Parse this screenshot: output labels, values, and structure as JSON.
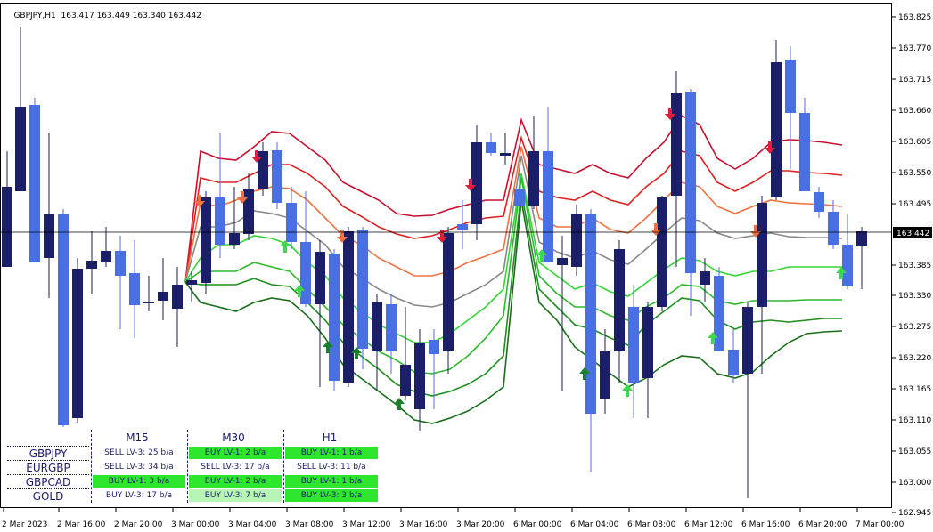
{
  "header": {
    "symbol_tf": "GBPJPY,H1",
    "ohlc": "163.417 163.449 163.340 163.442"
  },
  "current_price": "163.442",
  "y_labels": [
    "163.825",
    "163.770",
    "163.715",
    "163.660",
    "163.605",
    "163.550",
    "163.495",
    "163.385",
    "163.330",
    "163.275",
    "163.220",
    "163.165",
    "163.110",
    "163.055",
    "163.000",
    "162.945"
  ],
  "x_labels": [
    "2 Mar 2023",
    "2 Mar 16:00",
    "2 Mar 20:00",
    "3 Mar 00:00",
    "3 Mar 04:00",
    "3 Mar 08:00",
    "3 Mar 12:00",
    "3 Mar 16:00",
    "3 Mar 20:00",
    "6 Mar 00:00",
    "6 Mar 04:00",
    "6 Mar 08:00",
    "6 Mar 12:00",
    "6 Mar 16:00",
    "6 Mar 20:00",
    "7 Mar 00:00"
  ],
  "colors": {
    "bull": "#4a6fe0",
    "bear": "#1a1f66",
    "sell_arrow": "#e0203a",
    "buy_arrow_light": "#3fd84a",
    "buy_arrow_dark": "#1a7f2a"
  },
  "panel": {
    "columns": [
      "M15",
      "M30",
      "H1"
    ],
    "rows": [
      {
        "name": "GBPJPY",
        "cells": [
          "SELL LV-3: 25 b/a",
          "BUY LV-1: 2 b/a",
          "BUY LV-1: 1 b/a"
        ]
      },
      {
        "name": "EURGBP",
        "cells": [
          "SELL LV-3: 34 b/a",
          "SELL LV-3: 17 b/a",
          "SELL LV-3: 11 b/a"
        ]
      },
      {
        "name": "GBPCAD",
        "cells": [
          "BUY LV-1: 3 b/a",
          "BUY LV-1: 2 b/a",
          "BUY LV-1: 1 b/a"
        ]
      },
      {
        "name": "GOLD",
        "cells": [
          "BUY LV-3: 17 b/a",
          "BUY LV-3: 7 b/a",
          "BUY LV-3: 3 b/a"
        ]
      }
    ]
  }
}
